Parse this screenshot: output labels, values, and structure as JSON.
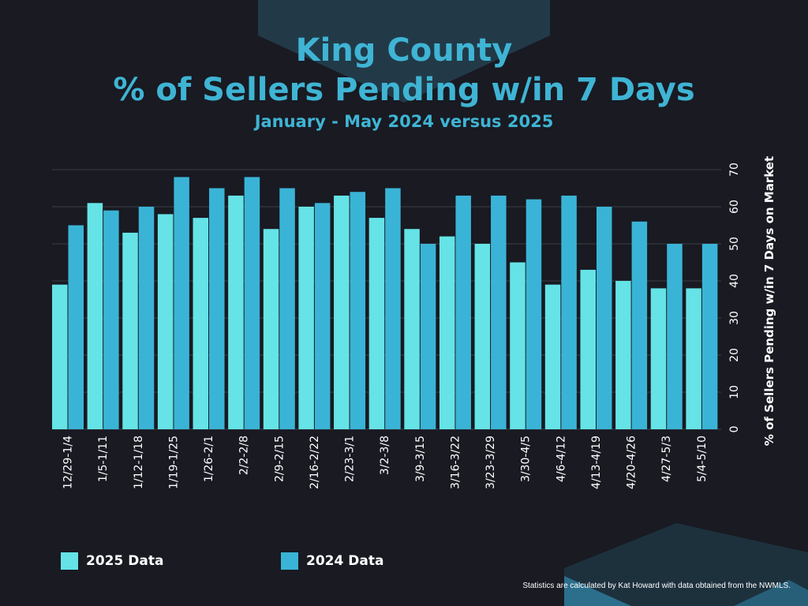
{
  "title_line1": "King County",
  "title_line2": "% of Sellers Pending w/in 7 Days",
  "subtitle": "January - May 2024 versus 2025",
  "footnote": "Statistics are calculated by Kat Howard with data obtained from the NWMLS.",
  "colors": {
    "background": "#191a22",
    "title": "#3fb4d4",
    "series_2025": "#65e3e6",
    "series_2024": "#3ab4d6",
    "grid": "#3a3d47"
  },
  "chart_data": {
    "type": "bar",
    "categories": [
      "12/29-1/4",
      "1/5-1/11",
      "1/12-1/18",
      "1/19-1/25",
      "1/26-2/1",
      "2/2-2/8",
      "2/9-2/15",
      "2/16-2/22",
      "2/23-3/1",
      "3/2-3/8",
      "3/9-3/15",
      "3/16-3/22",
      "3/23-3/29",
      "3/30-4/5",
      "4/6-4/12",
      "4/13-4/19",
      "4/20-4/26",
      "4/27-5/3",
      "5/4-5/10"
    ],
    "series": [
      {
        "name": "2025 Data",
        "values": [
          39,
          61,
          53,
          58,
          57,
          63,
          54,
          60,
          63,
          57,
          54,
          52,
          50,
          45,
          39,
          43,
          40,
          38,
          38
        ]
      },
      {
        "name": "2024 Data",
        "values": [
          55,
          59,
          60,
          68,
          65,
          68,
          65,
          61,
          64,
          65,
          50,
          63,
          63,
          62,
          63,
          60,
          56,
          50,
          50
        ]
      }
    ],
    "ylabel": "% of Sellers Pending w/in 7 Days on Market",
    "ylim": [
      0,
      70
    ],
    "yticks": [
      0,
      10,
      20,
      30,
      40,
      50,
      60,
      70
    ],
    "y_axis_side": "right",
    "grid": true,
    "legend_position": "bottom-left"
  }
}
